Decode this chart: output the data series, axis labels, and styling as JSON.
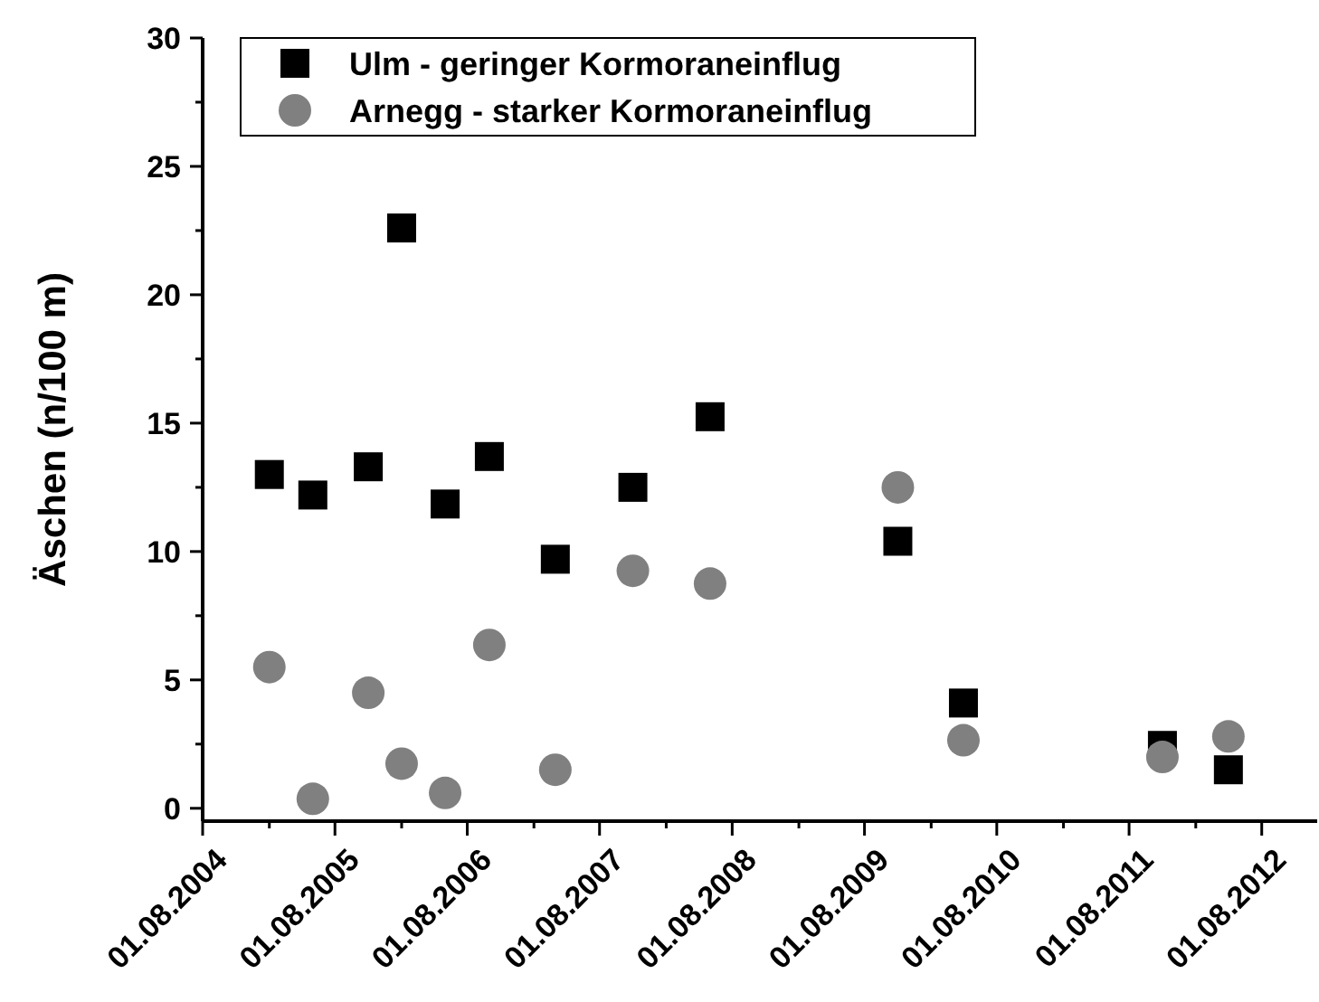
{
  "chart_data": {
    "type": "scatter",
    "ylabel": "Äschen (n/100 m)",
    "legend": "top left",
    "xlim": [
      "2004-08-01",
      "2013-01-01"
    ],
    "ylim": [
      -0.5,
      30
    ],
    "xticks": [
      {
        "value": "2004-08-01",
        "label": "01.08.2004"
      },
      {
        "value": "2005-02-01",
        "label": null
      },
      {
        "value": "2005-08-01",
        "label": "01.08.2005"
      },
      {
        "value": "2006-02-01",
        "label": null
      },
      {
        "value": "2006-08-01",
        "label": "01.08.2006"
      },
      {
        "value": "2007-02-01",
        "label": null
      },
      {
        "value": "2007-08-01",
        "label": "01.08.2007"
      },
      {
        "value": "2008-02-01",
        "label": null
      },
      {
        "value": "2008-08-01",
        "label": "01.08.2008"
      },
      {
        "value": "2009-02-01",
        "label": null
      },
      {
        "value": "2009-08-01",
        "label": "01.08.2009"
      },
      {
        "value": "2010-02-01",
        "label": null
      },
      {
        "value": "2010-08-01",
        "label": "01.08.2010"
      },
      {
        "value": "2011-02-01",
        "label": null
      },
      {
        "value": "2011-08-01",
        "label": "01.08.2011"
      },
      {
        "value": "2012-02-01",
        "label": null
      },
      {
        "value": "2012-08-01",
        "label": "01.08.2012"
      }
    ],
    "yticks": [
      0,
      {
        "value": 2.5,
        "label": null
      },
      5,
      {
        "value": 7.5,
        "label": null
      },
      10,
      {
        "value": 12.5,
        "label": null
      },
      15,
      {
        "value": 17.5,
        "label": null
      },
      20,
      {
        "value": 22.5,
        "label": null
      },
      25,
      {
        "value": 27.5,
        "label": null
      },
      30
    ],
    "x": [
      "2005-02",
      "2005-06",
      "2005-11",
      "2006-02",
      "2006-06",
      "2006-10",
      "2007-04",
      "2007-11",
      "2008-06",
      "2009-11",
      "2010-05",
      "2011-11",
      "2012-05"
    ],
    "series": [
      {
        "name": "Ulm - geringer Kormoraneinflug",
        "color": "#000000",
        "marker": "square",
        "values": [
          13.0,
          12.2,
          13.3,
          22.6,
          11.85,
          13.7,
          9.7,
          12.5,
          15.25,
          10.4,
          4.1,
          2.45,
          1.5
        ]
      },
      {
        "name": "Arnegg - starker Kormoraneinflug",
        "color": "#808080",
        "marker": "circle",
        "values": [
          5.5,
          0.37,
          4.5,
          1.74,
          0.6,
          6.36,
          1.5,
          9.25,
          8.75,
          12.5,
          2.65,
          2.0,
          2.8
        ]
      }
    ]
  }
}
